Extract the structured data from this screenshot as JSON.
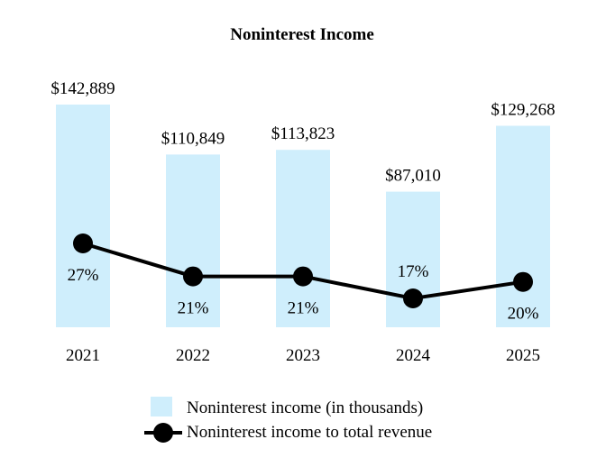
{
  "chart_data": {
    "type": "bar",
    "title": "Noninterest Income",
    "categories": [
      "2021",
      "2022",
      "2023",
      "2024",
      "2025"
    ],
    "series": [
      {
        "name": "Noninterest income (in thousands)",
        "type": "bar",
        "values": [
          142889,
          110849,
          113823,
          87010,
          129268
        ],
        "labels": [
          "$142,889",
          "$110,849",
          "$113,823",
          "$87,010",
          "$129,268"
        ],
        "color": "#cfeefc"
      },
      {
        "name": "Noninterest income to total revenue",
        "type": "line",
        "values": [
          27,
          21,
          21,
          17,
          20
        ],
        "labels": [
          "27%",
          "21%",
          "21%",
          "17%",
          "20%"
        ],
        "color": "#000000"
      }
    ],
    "legend": [
      "Noninterest income (in thousands)",
      "Noninterest income to total revenue"
    ],
    "legend_position": "bottom",
    "grid": false
  }
}
